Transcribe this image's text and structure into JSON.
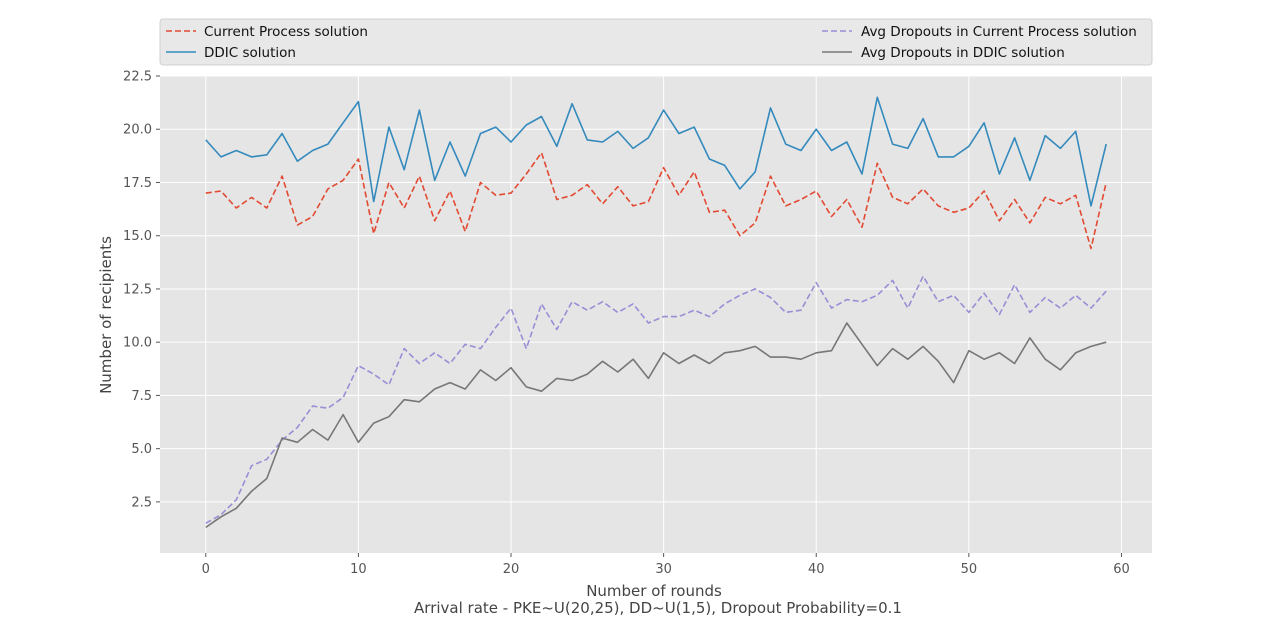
{
  "chart_data": {
    "type": "line",
    "title": "",
    "xlabel": "Number of rounds",
    "ylabel": "Number of recipients",
    "caption": "Arrival rate - PKE~U(20,25), DD~U(1,5), Dropout Probability=0.1",
    "xlim": [
      -3,
      62
    ],
    "ylim": [
      0.1,
      22.5
    ],
    "xticks": [
      0,
      10,
      20,
      30,
      40,
      50,
      60
    ],
    "xtick_labels": [
      "0",
      "10",
      "20",
      "30",
      "40",
      "50",
      "60"
    ],
    "yticks": [
      2.5,
      5.0,
      7.5,
      10.0,
      12.5,
      15.0,
      17.5,
      20.0,
      22.5
    ],
    "ytick_labels": [
      "2.5",
      "5.0",
      "7.5",
      "10.0",
      "12.5",
      "15.0",
      "17.5",
      "20.0",
      "22.5"
    ],
    "grid": true,
    "legend_position": "top",
    "x": [
      0,
      1,
      2,
      3,
      4,
      5,
      6,
      7,
      8,
      9,
      10,
      11,
      12,
      13,
      14,
      15,
      16,
      17,
      18,
      19,
      20,
      21,
      22,
      23,
      24,
      25,
      26,
      27,
      28,
      29,
      30,
      31,
      32,
      33,
      34,
      35,
      36,
      37,
      38,
      39,
      40,
      41,
      42,
      43,
      44,
      45,
      46,
      47,
      48,
      49,
      50,
      51,
      52,
      53,
      54,
      55,
      56,
      57,
      58,
      59
    ],
    "series": [
      {
        "name": "Current Process solution",
        "color": "#E24A33",
        "dashed": true,
        "values": [
          17.0,
          17.1,
          16.3,
          16.8,
          16.3,
          17.8,
          15.5,
          15.9,
          17.2,
          17.6,
          18.6,
          15.1,
          17.5,
          16.3,
          17.8,
          15.7,
          17.1,
          15.2,
          17.5,
          16.9,
          17.0,
          17.9,
          18.9,
          16.7,
          16.9,
          17.4,
          16.5,
          17.3,
          16.4,
          16.6,
          18.2,
          16.9,
          18.0,
          16.1,
          16.2,
          15.0,
          15.6,
          17.8,
          16.4,
          16.7,
          17.1,
          15.9,
          16.7,
          15.4,
          18.4,
          16.8,
          16.5,
          17.2,
          16.4,
          16.1,
          16.3,
          17.1,
          15.7,
          16.7,
          15.6,
          16.8,
          16.5,
          16.9,
          14.4,
          17.5
        ]
      },
      {
        "name": "DDIC solution",
        "color": "#348ABD",
        "dashed": false,
        "values": [
          19.5,
          18.7,
          19.0,
          18.7,
          18.8,
          19.8,
          18.5,
          19.0,
          19.3,
          20.3,
          21.3,
          16.6,
          20.1,
          18.1,
          20.9,
          17.6,
          19.4,
          17.8,
          19.8,
          20.1,
          19.4,
          20.2,
          20.6,
          19.2,
          21.2,
          19.5,
          19.4,
          19.9,
          19.1,
          19.6,
          20.9,
          19.8,
          20.1,
          18.6,
          18.3,
          17.2,
          18.0,
          21.0,
          19.3,
          19.0,
          20.0,
          19.0,
          19.4,
          17.9,
          21.5,
          19.3,
          19.1,
          20.5,
          18.7,
          18.7,
          19.2,
          20.3,
          17.9,
          19.6,
          17.6,
          19.7,
          19.1,
          19.9,
          16.4,
          19.3
        ]
      },
      {
        "name": "Avg Dropouts in Current Process solution",
        "color": "#988ED5",
        "dashed": true,
        "values": [
          1.5,
          1.9,
          2.6,
          4.2,
          4.5,
          5.4,
          6.0,
          7.0,
          6.9,
          7.4,
          8.9,
          8.5,
          8.0,
          9.7,
          9.0,
          9.5,
          9.0,
          9.9,
          9.7,
          10.7,
          11.6,
          9.7,
          11.8,
          10.6,
          11.9,
          11.5,
          11.9,
          11.4,
          11.8,
          10.9,
          11.2,
          11.2,
          11.5,
          11.2,
          11.8,
          12.2,
          12.5,
          12.1,
          11.4,
          11.5,
          12.8,
          11.6,
          12.0,
          11.9,
          12.2,
          12.9,
          11.6,
          13.1,
          11.9,
          12.2,
          11.4,
          12.3,
          11.3,
          12.7,
          11.4,
          12.1,
          11.6,
          12.2,
          11.6,
          12.4
        ]
      },
      {
        "name": "Avg Dropouts in DDIC solution",
        "color": "#777777",
        "dashed": false,
        "values": [
          1.3,
          1.8,
          2.2,
          3.0,
          3.6,
          5.5,
          5.3,
          5.9,
          5.4,
          6.6,
          5.3,
          6.2,
          6.5,
          7.3,
          7.2,
          7.8,
          8.1,
          7.8,
          8.7,
          8.2,
          8.8,
          7.9,
          7.7,
          8.3,
          8.2,
          8.5,
          9.1,
          8.6,
          9.2,
          8.3,
          9.5,
          9.0,
          9.4,
          9.0,
          9.5,
          9.6,
          9.8,
          9.3,
          9.3,
          9.2,
          9.5,
          9.6,
          10.9,
          9.9,
          8.9,
          9.7,
          9.2,
          9.8,
          9.1,
          8.1,
          9.6,
          9.2,
          9.5,
          9.0,
          10.2,
          9.2,
          8.7,
          9.5,
          9.8,
          10.0
        ]
      }
    ]
  }
}
